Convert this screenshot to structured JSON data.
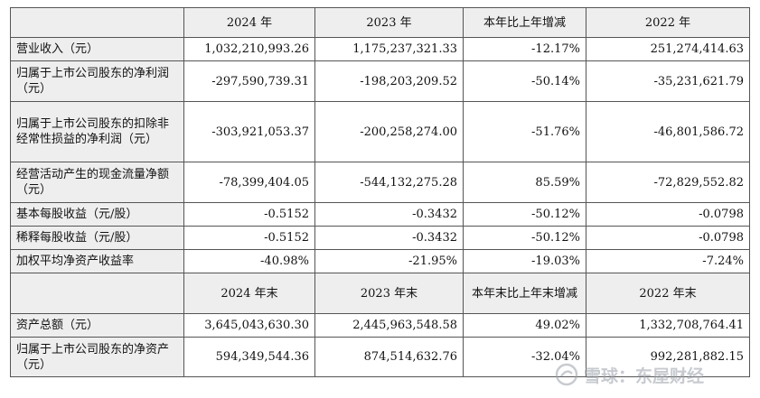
{
  "header1": [
    "",
    "2024 年",
    "2023 年",
    "本年比上年增减",
    "2022 年"
  ],
  "header2": [
    "",
    "2024 年末",
    "2023 年末",
    "本年末比上年末增减",
    "2022 年末"
  ],
  "rows1": [
    {
      "label": "营业收入（元）",
      "v2024": "1,032,210,993.26",
      "v2023": "1,175,237,321.33",
      "change": "-12.17%",
      "v2022": "251,274,414.63"
    },
    {
      "label": "归属于上市公司股东的净利润（元）",
      "v2024": "-297,590,739.31",
      "v2023": "-198,203,209.52",
      "change": "-50.14%",
      "v2022": "-35,231,621.79"
    },
    {
      "label": "归属于上市公司股东的扣除非经常性损益的净利润（元）",
      "v2024": "-303,921,053.37",
      "v2023": "-200,258,274.00",
      "change": "-51.76%",
      "v2022": "-46,801,586.72"
    },
    {
      "label": "经营活动产生的现金流量净额（元）",
      "v2024": "-78,399,404.05",
      "v2023": "-544,132,275.28",
      "change": "85.59%",
      "v2022": "-72,829,552.82"
    },
    {
      "label": "基本每股收益（元/股）",
      "v2024": "-0.5152",
      "v2023": "-0.3432",
      "change": "-50.12%",
      "v2022": "-0.0798"
    },
    {
      "label": "稀释每股收益（元/股）",
      "v2024": "-0.5152",
      "v2023": "-0.3432",
      "change": "-50.12%",
      "v2022": "-0.0798"
    },
    {
      "label": "加权平均净资产收益率",
      "v2024": "-40.98%",
      "v2023": "-21.95%",
      "change": "-19.03%",
      "v2022": "-7.24%"
    }
  ],
  "rows2": [
    {
      "label": "资产总额（元）",
      "v2024": "3,645,043,630.30",
      "v2023": "2,445,963,548.58",
      "change": "49.02%",
      "v2022": "1,332,708,764.41"
    },
    {
      "label": "归属于上市公司股东的净资产（元）",
      "v2024": "594,349,544.36",
      "v2023": "874,514,632.76",
      "change": "-32.04%",
      "v2022": "992,281,882.15"
    }
  ],
  "watermark": {
    "text": "雪球：东屋财经",
    "icon": "snowball-logo-icon"
  }
}
